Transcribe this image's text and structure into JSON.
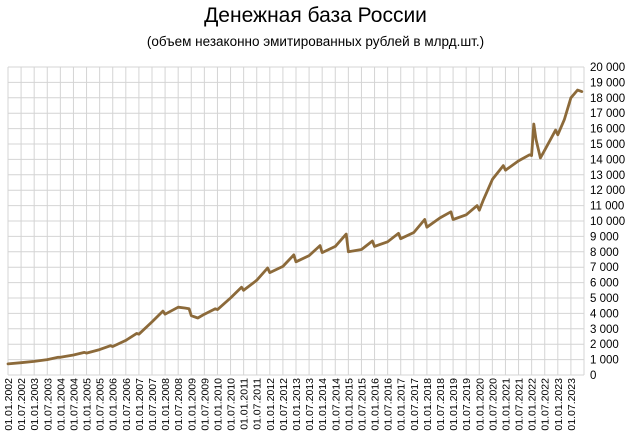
{
  "chart_data": {
    "type": "line",
    "title": "Денежная база России",
    "subtitle": "(объем  незаконно эмитированных рублей в млрд.шт.)",
    "xlabel": "",
    "ylabel": "",
    "ylim": [
      0,
      20000
    ],
    "grid": true,
    "y_ticks": [
      "0",
      "1 000",
      "2 000",
      "3 000",
      "4 000",
      "5 000",
      "6 000",
      "7 000",
      "8 000",
      "9 000",
      "10 000",
      "11 000",
      "12 000",
      "13 000",
      "14 000",
      "15 000",
      "16 000",
      "17 000",
      "18 000",
      "19 000",
      "20 000"
    ],
    "x_ticks": [
      "01.01.2002",
      "01.07.2002",
      "01.01.2003",
      "01.07.2003",
      "01.01.2004",
      "01.07.2004",
      "01.01.2005",
      "01.07.2005",
      "01.01.2006",
      "01.07.2006",
      "01.01.2007",
      "01.07.2007",
      "01.01.2008",
      "01.07.2008",
      "01.01.2009",
      "01.07.2009",
      "01.01.2010",
      "01.07.2010",
      "01.01.2011",
      "01.07.2011",
      "01.01.2012",
      "01.07.2012",
      "01.01.2013",
      "01.07.2013",
      "01.01.2014",
      "01.07.2014",
      "01.01.2015",
      "01.07.2015",
      "01.01.2016",
      "01.07.2016",
      "01.01.2017",
      "01.07.2017",
      "01.01.2018",
      "01.07.2018",
      "01.01.2019",
      "01.07.2019",
      "01.01.2020",
      "01.07.2020",
      "01.01.2021",
      "01.07.2021",
      "01.01.2022",
      "01.07.2022",
      "01.01.2023",
      "01.07.2023"
    ],
    "series": [
      {
        "color": "#8c6a3a",
        "x": [
          "2002-01",
          "2002-07",
          "2003-01",
          "2003-07",
          "2003-12",
          "2004-01",
          "2004-07",
          "2004-12",
          "2005-01",
          "2005-07",
          "2005-12",
          "2006-01",
          "2006-07",
          "2006-12",
          "2007-01",
          "2007-07",
          "2007-12",
          "2008-01",
          "2008-07",
          "2008-10",
          "2008-12",
          "2009-01",
          "2009-04",
          "2009-07",
          "2009-12",
          "2010-01",
          "2010-07",
          "2010-12",
          "2011-01",
          "2011-07",
          "2011-12",
          "2012-01",
          "2012-07",
          "2012-12",
          "2013-01",
          "2013-07",
          "2013-12",
          "2014-01",
          "2014-07",
          "2014-12",
          "2015-01",
          "2015-07",
          "2015-12",
          "2016-01",
          "2016-07",
          "2016-12",
          "2017-01",
          "2017-07",
          "2017-12",
          "2018-01",
          "2018-07",
          "2018-12",
          "2019-01",
          "2019-07",
          "2019-12",
          "2020-01",
          "2020-03",
          "2020-07",
          "2020-12",
          "2021-01",
          "2021-07",
          "2021-12",
          "2022-01",
          "2022-02",
          "2022-03",
          "2022-05",
          "2022-07",
          "2022-12",
          "2023-01",
          "2023-04",
          "2023-07",
          "2023-10",
          "2023-12"
        ],
        "values": [
          720,
          800,
          880,
          1000,
          1150,
          1150,
          1300,
          1470,
          1420,
          1650,
          1900,
          1850,
          2250,
          2700,
          2650,
          3450,
          4150,
          3950,
          4400,
          4350,
          4300,
          3850,
          3700,
          3950,
          4300,
          4250,
          5000,
          5700,
          5500,
          6150,
          6950,
          6650,
          7050,
          7800,
          7350,
          7750,
          8400,
          7950,
          8350,
          9150,
          8000,
          8150,
          8700,
          8350,
          8650,
          9200,
          8850,
          9250,
          10100,
          9600,
          10200,
          10600,
          10100,
          10400,
          11000,
          10700,
          11400,
          12700,
          13600,
          13300,
          13900,
          14300,
          14250,
          16300,
          15300,
          14100,
          14600,
          15900,
          15600,
          16600,
          18000,
          18500,
          18400
        ]
      }
    ]
  }
}
